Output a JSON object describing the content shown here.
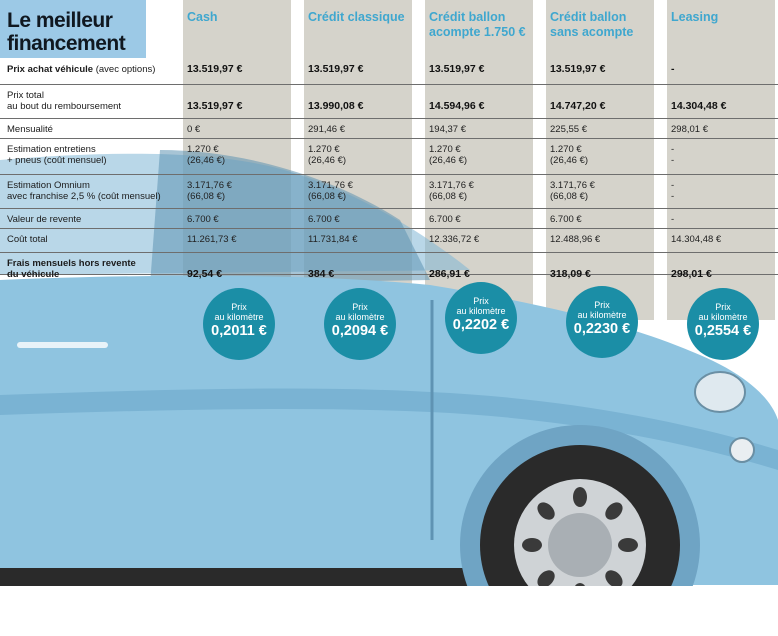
{
  "title": "Le meilleur financement",
  "chart_data": {
    "type": "table",
    "columns": [
      "Cash",
      "Crédit classique",
      "Crédit ballon acompte 1.750 €",
      "Crédit ballon sans acompte",
      "Leasing"
    ],
    "rows": [
      {
        "label_bold": "Prix achat véhicule",
        "label_rest": " (avec options)",
        "bold": true,
        "values": [
          "13.519,97 €",
          "13.519,97 €",
          "13.519,97 €",
          "13.519,97 €",
          "-"
        ]
      },
      {
        "label": "Prix total au bout du remboursement",
        "label_line1": "Prix total",
        "label_line2": "au bout du remboursement",
        "bold": true,
        "values": [
          "13.519,97 €",
          "13.990,08 €",
          "14.594,96 €",
          "14.747,20 €",
          "14.304,48 €"
        ]
      },
      {
        "label": "Mensualité",
        "bold": false,
        "values": [
          "0 €",
          "291,46 €",
          "194,37 €",
          "225,55 €",
          "298,01 €"
        ]
      },
      {
        "label": "Estimation entretiens + pneus (coût mensuel)",
        "label_line1": "Estimation entretiens",
        "label_line2": "+ pneus (coût mensuel)",
        "bold": false,
        "values": [
          "1.270 €",
          "1.270 €",
          "1.270 €",
          "1.270 €",
          "-"
        ],
        "values2": [
          "(26,46 €)",
          "(26,46 €)",
          "(26,46 €)",
          "(26,46 €)",
          "-"
        ]
      },
      {
        "label": "Estimation Omnium avec franchise 2,5 % (coût mensuel)",
        "label_line1": "Estimation Omnium",
        "label_line2": "avec franchise 2,5 % (coût mensuel)",
        "bold": false,
        "values": [
          "3.171,76 €",
          "3.171,76 €",
          "3.171,76 €",
          "3.171,76 €",
          "-"
        ],
        "values2": [
          "(66,08 €)",
          "(66,08 €)",
          "(66,08 €)",
          "(66,08 €)",
          "-"
        ]
      },
      {
        "label": "Valeur de revente",
        "bold": false,
        "values": [
          "6.700 €",
          "6.700 €",
          "6.700 €",
          "6.700 €",
          "-"
        ]
      },
      {
        "label": "Coût total",
        "bold": false,
        "values": [
          "11.261,73 €",
          "11.731,84 €",
          "12.336,72 €",
          "12.488,96 €",
          "14.304,48 €"
        ]
      },
      {
        "label": "Frais mensuels hors revente du véhicule",
        "label_line1": "Frais mensuels hors revente",
        "label_line2": "du véhicule",
        "bold": true,
        "label_all_bold": true,
        "values": [
          "92,54 €",
          "384 €",
          "286,91 €",
          "318,09 €",
          "298,01 €"
        ]
      }
    ],
    "price_per_km": {
      "caption_line1": "Prix",
      "caption_line2": "au kilomètre",
      "values": [
        "0,2011 €",
        "0,2094 €",
        "0,2202 €",
        "0,2230 €",
        "0,2554 €"
      ]
    }
  },
  "colors": {
    "header_blue": "#3fa7cf",
    "badge_teal": "#1b8ea6",
    "column_grey": "#c9c6bd",
    "car_body": "#8fc4e0"
  }
}
